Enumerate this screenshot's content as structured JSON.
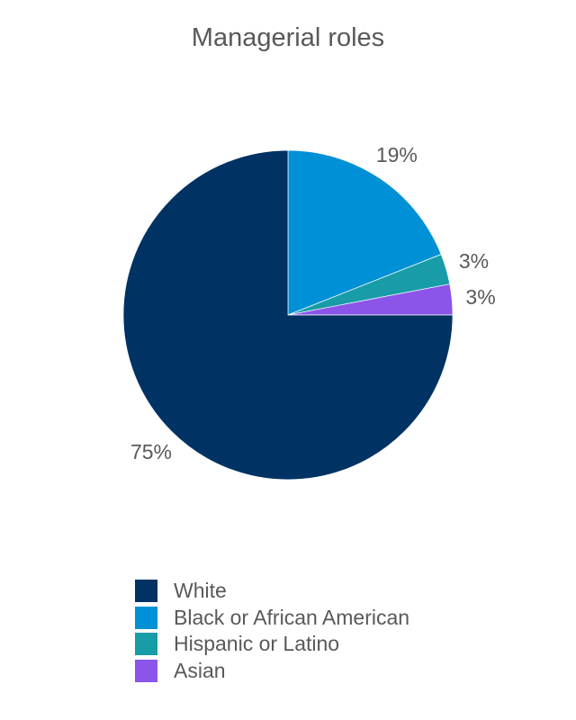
{
  "chart_data": {
    "type": "pie",
    "title": "Managerial roles",
    "slices": [
      {
        "name": "Black or African American",
        "value": 19,
        "label": "19%",
        "color": "#0090d6"
      },
      {
        "name": "Hispanic or Latino",
        "value": 3,
        "label": "3%",
        "color": "#179ca8"
      },
      {
        "name": "Asian",
        "value": 3,
        "label": "3%",
        "color": "#8a55e8"
      },
      {
        "name": "White",
        "value": 75,
        "label": "75%",
        "color": "#003263"
      }
    ],
    "start_angle": "top",
    "direction": "clockwise",
    "legend": {
      "placement": "bottom",
      "entries": [
        {
          "name": "White",
          "color": "#003263"
        },
        {
          "name": "Black or African American",
          "color": "#0090d6"
        },
        {
          "name": "Hispanic or Latino",
          "color": "#179ca8"
        },
        {
          "name": "Asian",
          "color": "#8a55e8"
        }
      ]
    }
  }
}
